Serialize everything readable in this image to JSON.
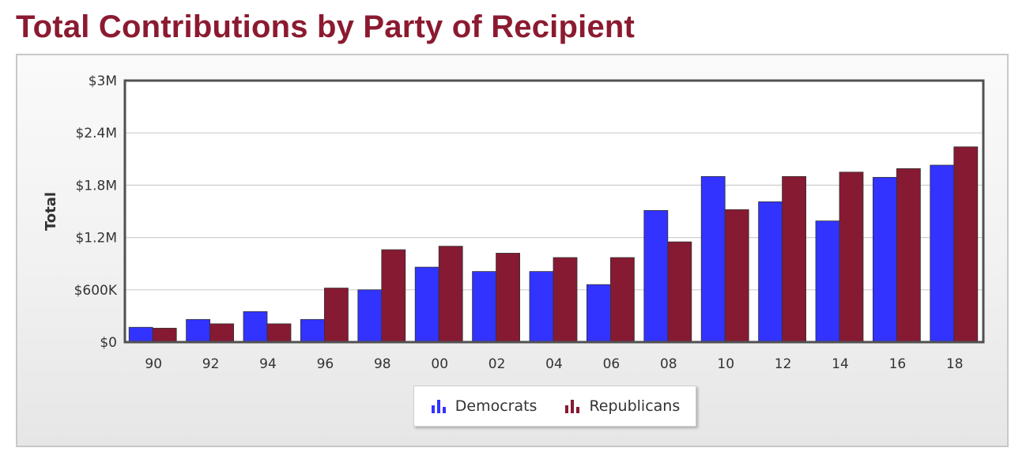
{
  "title": "Total Contributions by Party of Recipient",
  "chart_data": {
    "type": "bar",
    "title": "Total Contributions by Party of Recipient",
    "xlabel": "",
    "ylabel": "Total",
    "ylim": [
      0,
      3000000
    ],
    "yticks": [
      0,
      600000,
      1200000,
      1800000,
      2400000,
      3000000
    ],
    "ytick_labels": [
      "$0",
      "$600K",
      "$1.2M",
      "$1.8M",
      "$2.4M",
      "$3M"
    ],
    "categories": [
      "90",
      "92",
      "94",
      "96",
      "98",
      "00",
      "02",
      "04",
      "06",
      "08",
      "10",
      "12",
      "14",
      "16",
      "18"
    ],
    "series": [
      {
        "name": "Democrats",
        "color": "#3333ff",
        "values": [
          170000,
          260000,
          350000,
          260000,
          600000,
          860000,
          810000,
          810000,
          660000,
          1510000,
          1900000,
          1610000,
          1390000,
          1890000,
          2030000
        ]
      },
      {
        "name": "Republicans",
        "color": "#861a32",
        "values": [
          160000,
          210000,
          210000,
          620000,
          1060000,
          1100000,
          1020000,
          970000,
          970000,
          1150000,
          1520000,
          1900000,
          1950000,
          1990000,
          2240000
        ]
      }
    ],
    "grid": true,
    "legend": "bottom-center"
  },
  "legend": {
    "democrats_label": "Democrats",
    "republicans_label": "Republicans"
  }
}
